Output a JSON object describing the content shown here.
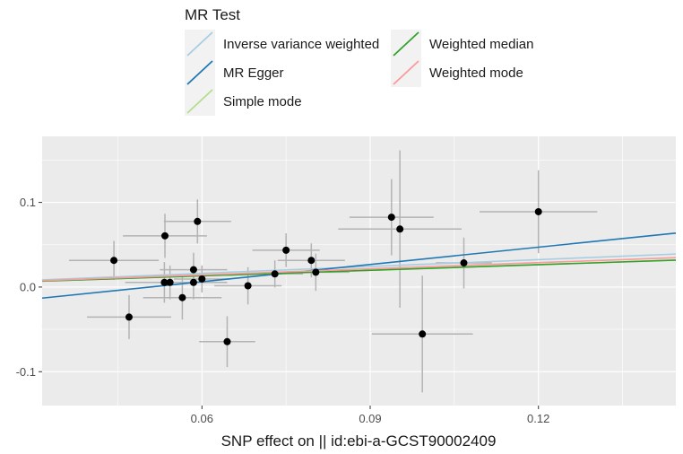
{
  "chart_data": {
    "type": "scatter",
    "title": "",
    "xlabel": "SNP effect on  || id:ebi-a-GCST90002409",
    "ylabel": "",
    "xlim": [
      0.0315,
      0.1445
    ],
    "ylim": [
      -0.14,
      0.178
    ],
    "x_ticks": [
      0.06,
      0.09,
      0.12
    ],
    "x_tick_labels": [
      "0.06",
      "0.09",
      "0.12"
    ],
    "y_ticks": [
      -0.1,
      0.0,
      0.1
    ],
    "y_tick_labels": [
      "-0.1",
      "0.0",
      "0.1"
    ],
    "grid": true,
    "panel_background": "#ebebeb",
    "point_color": "#000000",
    "errorbar_color": "#b3b3b3",
    "legend": {
      "title": "MR Test",
      "position": "top",
      "entries": [
        {
          "label": "Inverse variance weighted",
          "color": "#a6cee3"
        },
        {
          "label": "MR Egger",
          "color": "#1f78b4"
        },
        {
          "label": "Simple mode",
          "color": "#b2df8a"
        },
        {
          "label": "Weighted median",
          "color": "#33a02c"
        },
        {
          "label": "Weighted mode",
          "color": "#fb9a99"
        }
      ]
    },
    "lines": [
      {
        "name": "Inverse variance weighted",
        "color": "#a6cee3",
        "intercept": 0,
        "slope": 0.27
      },
      {
        "name": "MR Egger",
        "color": "#1f78b4",
        "intercept": -0.0345,
        "slope": 0.68
      },
      {
        "name": "Simple mode",
        "color": "#b2df8a",
        "intercept": 0,
        "slope": 0.22
      },
      {
        "name": "Weighted median",
        "color": "#33a02c",
        "intercept": 0,
        "slope": 0.22
      },
      {
        "name": "Weighted mode",
        "color": "#fb9a99",
        "intercept": 0,
        "slope": 0.24
      }
    ],
    "points": [
      {
        "x": 0.0443,
        "y": 0.0315,
        "xerr": 0.008,
        "yerr": 0.023
      },
      {
        "x": 0.047,
        "y": -0.0355,
        "xerr": 0.0075,
        "yerr": 0.026
      },
      {
        "x": 0.0534,
        "y": 0.0605,
        "xerr": 0.0075,
        "yerr": 0.026
      },
      {
        "x": 0.0533,
        "y": 0.0055,
        "xerr": 0.007,
        "yerr": 0.024
      },
      {
        "x": 0.0543,
        "y": 0.0055,
        "xerr": 0.007,
        "yerr": 0.02
      },
      {
        "x": 0.0565,
        "y": -0.0125,
        "xerr": 0.007,
        "yerr": 0.026
      },
      {
        "x": 0.0585,
        "y": 0.0205,
        "xerr": 0.006,
        "yerr": 0.02
      },
      {
        "x": 0.0585,
        "y": 0.0055,
        "xerr": 0.006,
        "yerr": 0.02
      },
      {
        "x": 0.0592,
        "y": 0.0775,
        "xerr": 0.006,
        "yerr": 0.026
      },
      {
        "x": 0.06,
        "y": 0.0095,
        "xerr": 0.005,
        "yerr": 0.016
      },
      {
        "x": 0.0645,
        "y": -0.0645,
        "xerr": 0.005,
        "yerr": 0.03
      },
      {
        "x": 0.0682,
        "y": 0.0015,
        "xerr": 0.006,
        "yerr": 0.022
      },
      {
        "x": 0.073,
        "y": 0.0155,
        "xerr": 0.005,
        "yerr": 0.016
      },
      {
        "x": 0.075,
        "y": 0.0435,
        "xerr": 0.006,
        "yerr": 0.02
      },
      {
        "x": 0.0795,
        "y": 0.0315,
        "xerr": 0.006,
        "yerr": 0.02
      },
      {
        "x": 0.0803,
        "y": 0.0175,
        "xerr": 0.006,
        "yerr": 0.022
      },
      {
        "x": 0.0938,
        "y": 0.0825,
        "xerr": 0.0075,
        "yerr": 0.045
      },
      {
        "x": 0.0953,
        "y": 0.0685,
        "xerr": 0.011,
        "yerr": 0.093
      },
      {
        "x": 0.0993,
        "y": -0.0555,
        "xerr": 0.009,
        "yerr": 0.069
      },
      {
        "x": 0.1067,
        "y": 0.0285,
        "xerr": 0.005,
        "yerr": 0.03
      },
      {
        "x": 0.12,
        "y": 0.089,
        "xerr": 0.0105,
        "yerr": 0.049
      }
    ]
  }
}
